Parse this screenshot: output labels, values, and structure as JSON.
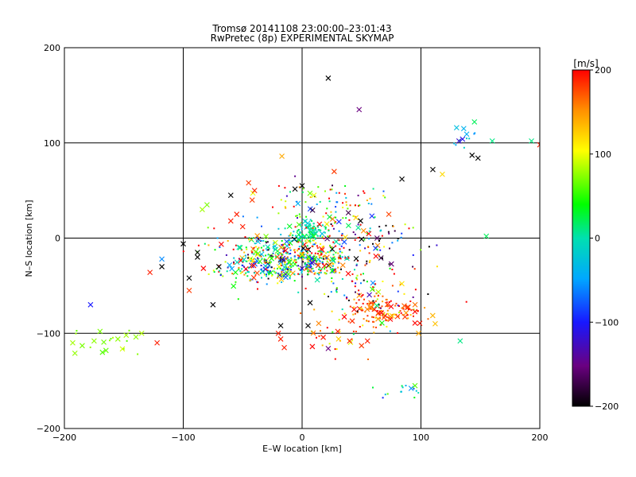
{
  "chart_data": {
    "type": "scatter",
    "title": "Tromsø 20141108 23:00:00–23:01:43",
    "subtitle": "RwPretec (8p) EXPERIMENTAL SKYMAP",
    "xlabel": "E–W location [km]",
    "ylabel": "N–S location [km]",
    "xlim": [
      -200,
      200
    ],
    "ylim": [
      -200,
      200
    ],
    "xticks": [
      "−200",
      "−100",
      "0",
      "100",
      "200"
    ],
    "yticks": [
      "200",
      "100",
      "0",
      "−100",
      "−200"
    ],
    "grid": true,
    "colorbar": {
      "label": "[m/s]",
      "min": -200,
      "max": 200,
      "ticks": [
        "200",
        "100",
        "0",
        "−100",
        "−200"
      ],
      "colormap": "rainbow-black-to-red"
    },
    "marker_types": [
      "small dot",
      "cross"
    ],
    "clusters": [
      {
        "x": -20,
        "y": -25,
        "sx": 18,
        "sy": 12,
        "n": 260,
        "v": -40,
        "vs": 110
      },
      {
        "x": 15,
        "y": -20,
        "sx": 15,
        "sy": 10,
        "n": 200,
        "v": 80,
        "vs": 120
      },
      {
        "x": 5,
        "y": 8,
        "sx": 8,
        "sy": 6,
        "n": 90,
        "v": 5,
        "vs": 25
      },
      {
        "x": 20,
        "y": 30,
        "sx": 25,
        "sy": 15,
        "n": 110,
        "v": 40,
        "vs": 130
      },
      {
        "x": 70,
        "y": -75,
        "sx": 15,
        "sy": 9,
        "n": 150,
        "v": 170,
        "vs": 40
      },
      {
        "x": 45,
        "y": -40,
        "sx": 25,
        "sy": 20,
        "n": 90,
        "v": 20,
        "vs": 160
      },
      {
        "x": 60,
        "y": 0,
        "sx": 20,
        "sy": 12,
        "n": 70,
        "v": 0,
        "vs": 160
      },
      {
        "x": -50,
        "y": -25,
        "sx": 20,
        "sy": 15,
        "n": 90,
        "v": 60,
        "vs": 140
      },
      {
        "x": -160,
        "y": -110,
        "sx": 18,
        "sy": 7,
        "n": 14,
        "v": 75,
        "vs": 10
      },
      {
        "x": 25,
        "y": -100,
        "sx": 15,
        "sy": 12,
        "n": 30,
        "v": 150,
        "vs": 60
      },
      {
        "x": 135,
        "y": 105,
        "sx": 8,
        "sy": 6,
        "n": 10,
        "v": -50,
        "vs": 30
      },
      {
        "x": 90,
        "y": -160,
        "sx": 15,
        "sy": 6,
        "n": 14,
        "v": -40,
        "vs": 50
      }
    ],
    "crosses": [
      {
        "x": 22,
        "y": 168,
        "v": -200
      },
      {
        "x": 48,
        "y": 135,
        "v": -150
      },
      {
        "x": 145,
        "y": 122,
        "v": 20
      },
      {
        "x": 130,
        "y": 116,
        "v": -30
      },
      {
        "x": 136,
        "y": 115,
        "v": -40
      },
      {
        "x": 135,
        "y": 104,
        "v": -110
      },
      {
        "x": 132,
        "y": 102,
        "v": -120
      },
      {
        "x": 160,
        "y": 102,
        "v": 10
      },
      {
        "x": 193,
        "y": 102,
        "v": 10
      },
      {
        "x": 143,
        "y": 87,
        "v": -200
      },
      {
        "x": 148,
        "y": 84,
        "v": -200
      },
      {
        "x": 118,
        "y": 67,
        "v": 120
      },
      {
        "x": 110,
        "y": 72,
        "v": -200
      },
      {
        "x": 84,
        "y": 62,
        "v": -200
      },
      {
        "x": -17,
        "y": 86,
        "v": 140
      },
      {
        "x": 27,
        "y": 70,
        "v": 180
      },
      {
        "x": 155,
        "y": 2,
        "v": 20
      },
      {
        "x": -100,
        "y": -6,
        "v": -200
      },
      {
        "x": -118,
        "y": -30,
        "v": -200
      },
      {
        "x": -118,
        "y": -22,
        "v": -60
      },
      {
        "x": -128,
        "y": -36,
        "v": 190
      },
      {
        "x": -88,
        "y": -15,
        "v": -200
      },
      {
        "x": -88,
        "y": -20,
        "v": -200
      },
      {
        "x": -95,
        "y": -42,
        "v": -200
      },
      {
        "x": -95,
        "y": -55,
        "v": 180
      },
      {
        "x": -75,
        "y": -70,
        "v": -200
      },
      {
        "x": -70,
        "y": -30,
        "v": -200
      },
      {
        "x": -178,
        "y": -70,
        "v": -100
      },
      {
        "x": -193,
        "y": -110,
        "v": 80
      },
      {
        "x": -185,
        "y": -113,
        "v": 70
      },
      {
        "x": -175,
        "y": -108,
        "v": 75
      },
      {
        "x": -168,
        "y": -120,
        "v": 60
      },
      {
        "x": -165,
        "y": -118,
        "v": 65
      },
      {
        "x": -155,
        "y": -106,
        "v": 75
      },
      {
        "x": -148,
        "y": -102,
        "v": 80
      },
      {
        "x": -135,
        "y": -100,
        "v": 85
      },
      {
        "x": -122,
        "y": -110,
        "v": 190
      },
      {
        "x": -170,
        "y": -98,
        "v": 70
      },
      {
        "x": -18,
        "y": -92,
        "v": -200
      },
      {
        "x": -18,
        "y": -106,
        "v": 190
      },
      {
        "x": -15,
        "y": -115,
        "v": 190
      },
      {
        "x": -20,
        "y": -100,
        "v": 190
      },
      {
        "x": 5,
        "y": -92,
        "v": -200
      },
      {
        "x": 22,
        "y": -116,
        "v": -150
      },
      {
        "x": 30,
        "y": -98,
        "v": 190
      },
      {
        "x": 40,
        "y": -108,
        "v": 190
      },
      {
        "x": 50,
        "y": -113,
        "v": 180
      },
      {
        "x": 55,
        "y": -108,
        "v": 190
      },
      {
        "x": 98,
        "y": -100,
        "v": 140
      },
      {
        "x": 112,
        "y": -90,
        "v": 130
      },
      {
        "x": 133,
        "y": -108,
        "v": 10
      },
      {
        "x": 95,
        "y": -155,
        "v": 60
      },
      {
        "x": 200,
        "y": 98,
        "v": 190
      },
      {
        "x": -60,
        "y": 45,
        "v": -200
      },
      {
        "x": -45,
        "y": 58,
        "v": 180
      },
      {
        "x": -40,
        "y": 50,
        "v": 190
      },
      {
        "x": -42,
        "y": 40,
        "v": 180
      },
      {
        "x": -84,
        "y": 30,
        "v": 80
      },
      {
        "x": -80,
        "y": 35,
        "v": 70
      },
      {
        "x": -60,
        "y": 18,
        "v": 190
      },
      {
        "x": -55,
        "y": 25,
        "v": 190
      },
      {
        "x": -50,
        "y": 12,
        "v": 190
      },
      {
        "x": 0,
        "y": 55,
        "v": -200
      },
      {
        "x": 10,
        "y": 45,
        "v": 100
      }
    ]
  }
}
